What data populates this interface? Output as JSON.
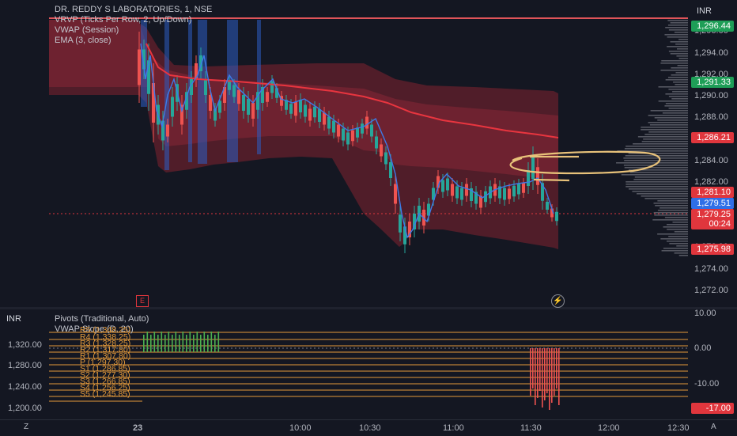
{
  "symbol_title": "DR. REDDY S LABORATORIES, 1, NSE",
  "legend_main": [
    "VRVP (Ticks Per Row, 2, Up/Down)",
    "VWAP (Session)",
    "EMA (3, close)"
  ],
  "legend_sub": [
    "Pivots (Traditional, Auto)",
    "VWAP Slope (D, 20)"
  ],
  "currency": "INR",
  "price_axis": [
    "1,296.00",
    "1,294.00",
    "1,292.00",
    "1,290.00",
    "1,288.00",
    "1,286.00",
    "1,284.00",
    "1,282.00",
    "1,280.00",
    "1,278.00",
    "1,276.00",
    "1,274.00",
    "1,272.00"
  ],
  "price_labels": [
    {
      "text": "1,296.44",
      "color": "#1e9e57"
    },
    {
      "text": "1,291.33",
      "color": "#1e9e57"
    },
    {
      "text": "1,286.21",
      "color": "#e0363d"
    },
    {
      "text": "1,281.10",
      "color": "#e0363d"
    },
    {
      "text": "1,279.51",
      "color": "#2f6fe8"
    },
    {
      "text": "1,279.25",
      "color": "#e0363d"
    },
    {
      "text": "00:24",
      "color": "#e0363d"
    },
    {
      "text": "1,275.98",
      "color": "#e0363d"
    }
  ],
  "sub_left_axis": [
    "1,320.00",
    "1,280.00",
    "1,240.00",
    "1,200.00"
  ],
  "sub_right_axis": [
    "10.00",
    "0.00",
    "-10.00"
  ],
  "sub_value_label": {
    "text": "-17.00",
    "color": "#e0363d"
  },
  "pivots": [
    "R5 (1,348.25)",
    "R4 (1,338.25)",
    "R3 (1,328.25)",
    "R2 (1,317.80)",
    "R1 (1,307.80)",
    "P (1,297.30)",
    "S1 (1,286.85)",
    "S2 (1,277.30)",
    "S3 (1,266.85)",
    "S4 (1,256.25)",
    "S5 (1,245.85)"
  ],
  "time_axis": [
    "23",
    "10:00",
    "10:30",
    "11:00",
    "11:30",
    "12:00",
    "12:30"
  ],
  "corner_left": "Z",
  "corner_right": "A",
  "marker_e": "E",
  "colors": {
    "bg": "#141722",
    "up": "#26a69a",
    "down": "#ef5350",
    "vwap": "#e8353f",
    "pivot": "#e39a3b"
  }
}
